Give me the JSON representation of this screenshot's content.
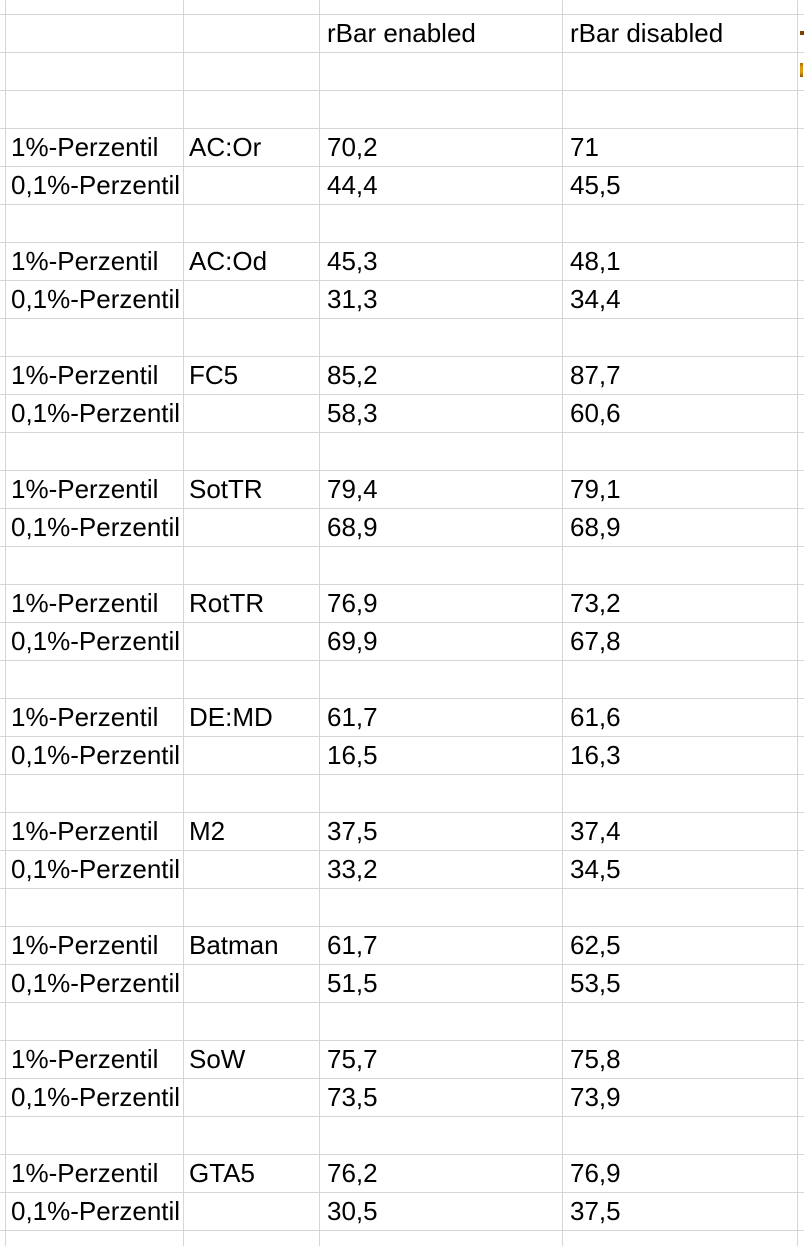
{
  "sheet": {
    "header": {
      "enabled_label": "rBar enabled",
      "disabled_label": "rBar disabled"
    },
    "labels": {
      "p1": "1%-Perzentil",
      "p01": "0,1%-Perzentil"
    },
    "games": [
      {
        "name": "AC:Or",
        "p1": {
          "enabled": "70,2",
          "disabled": "71"
        },
        "p01": {
          "enabled": "44,4",
          "disabled": "45,5"
        }
      },
      {
        "name": "AC:Od",
        "p1": {
          "enabled": "45,3",
          "disabled": "48,1"
        },
        "p01": {
          "enabled": "31,3",
          "disabled": "34,4"
        }
      },
      {
        "name": "FC5",
        "p1": {
          "enabled": "85,2",
          "disabled": "87,7"
        },
        "p01": {
          "enabled": "58,3",
          "disabled": "60,6"
        }
      },
      {
        "name": "SotTR",
        "p1": {
          "enabled": "79,4",
          "disabled": "79,1"
        },
        "p01": {
          "enabled": "68,9",
          "disabled": "68,9"
        }
      },
      {
        "name": "RotTR",
        "p1": {
          "enabled": "76,9",
          "disabled": "73,2"
        },
        "p01": {
          "enabled": "69,9",
          "disabled": "67,8"
        }
      },
      {
        "name": "DE:MD",
        "p1": {
          "enabled": "61,7",
          "disabled": "61,6"
        },
        "p01": {
          "enabled": "16,5",
          "disabled": "16,3"
        }
      },
      {
        "name": "M2",
        "p1": {
          "enabled": "37,5",
          "disabled": "37,4"
        },
        "p01": {
          "enabled": "33,2",
          "disabled": "34,5"
        }
      },
      {
        "name": "Batman",
        "p1": {
          "enabled": "61,7",
          "disabled": "62,5"
        },
        "p01": {
          "enabled": "51,5",
          "disabled": "53,5"
        }
      },
      {
        "name": "SoW",
        "p1": {
          "enabled": "75,7",
          "disabled": "75,8"
        },
        "p01": {
          "enabled": "73,5",
          "disabled": "73,9"
        }
      },
      {
        "name": "GTA5",
        "p1": {
          "enabled": "76,2",
          "disabled": "76,9"
        },
        "p01": {
          "enabled": "30,5",
          "disabled": "37,5"
        }
      }
    ],
    "colors": {
      "gridline": "#d6d6d6",
      "text": "#000000",
      "edge_mark_dark": "#7b3f00",
      "edge_mark_orange": "#dd9a0c"
    }
  }
}
